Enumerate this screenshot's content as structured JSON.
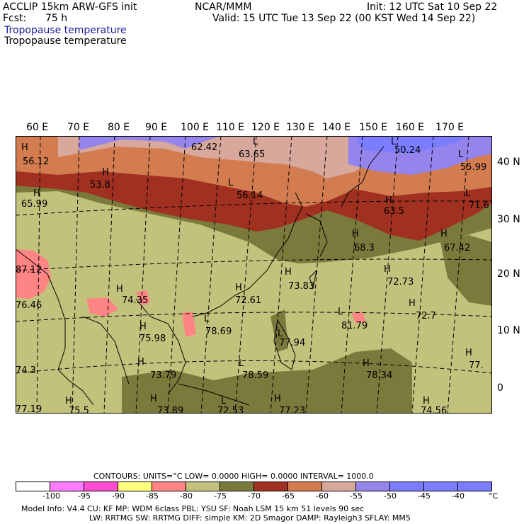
{
  "header": {
    "model": "ACCLIP 15km ARW-GFS init",
    "org": "NCAR/MMM",
    "init": "Init: 12 UTC Sat 10 Sep 22",
    "fcst_label": "Fcst:",
    "fcst_value": "75 h",
    "valid": "Valid: 15 UTC Tue 13 Sep 22 (00 KST Wed 14 Sep 22)",
    "field_title_1": "Tropopause temperature",
    "field_title_2": "Tropopause temperature"
  },
  "map": {
    "lon_labels": [
      "60 E",
      "70 E",
      "80 E",
      "90 E",
      "100 E",
      "110 E",
      "120 E",
      "130 E",
      "140 E",
      "150 E",
      "160 E",
      "170 E"
    ],
    "lat_labels": [
      "40 N",
      "30 N",
      "20 N",
      "10 N",
      "0"
    ],
    "high_symbol": "H",
    "low_symbol": "L",
    "values": [
      "56.12",
      "53.8",
      "62.42",
      "63.65",
      "50.24",
      "55.99",
      "65.99",
      "56.14",
      "63.5",
      "71.6",
      "68.3",
      "67.42",
      "87.12",
      "76.46",
      "74.35",
      "73.83",
      "72.61",
      "72.73",
      "75.98",
      "78.69",
      "81.79",
      "72.7",
      "77.94",
      "73.79",
      "78.59",
      "78.34",
      "77.",
      "74.3",
      "77.19",
      "75.5",
      "73.89",
      "72.53",
      "77.23",
      "74.56"
    ]
  },
  "legend": {
    "contours_line": "CONTOURS:  UNITS=°C  LOW=  0.0000          HIGH=  0.0000          INTERVAL=    1000.0",
    "colors": [
      "#ffffff",
      "#ff7cff",
      "#ff4cd0",
      "#ffff7c",
      "#ff8484",
      "#c2c27c",
      "#7a7a3c",
      "#a03020",
      "#d27c50",
      "#d8a89c",
      "#9484ec",
      "#7c7cff",
      "#7c7cff",
      "#7c7cff"
    ],
    "ticks": [
      "-100",
      "-95",
      "-90",
      "-85",
      "-80",
      "-75",
      "-70",
      "-65",
      "-60",
      "-55",
      "-50",
      "-45",
      "-40"
    ],
    "unit": "°C"
  },
  "model_info": {
    "line1": "Model Info: V4.4          CU: KF          MP: WDM 6class   PBL: YSU          SF: Noah LSM     15 km    51 levels    90 sec",
    "line2": "LW: RRTMG     SW: RRTMG   DIFF: simple KM: 2D Smagor DAMP: Rayleigh3   SFLAY: MM5"
  }
}
